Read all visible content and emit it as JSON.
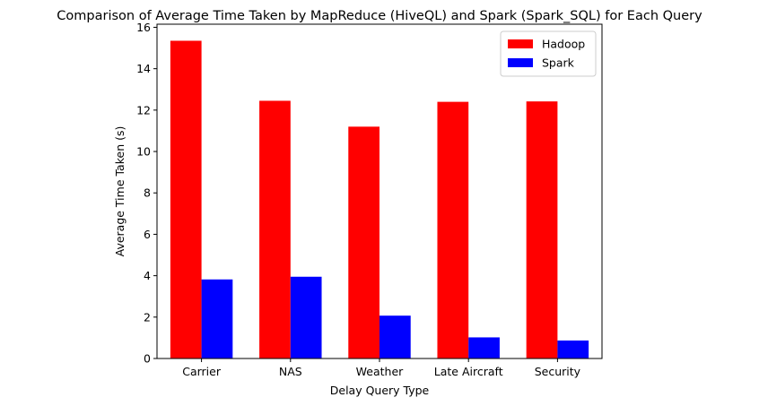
{
  "chart_data": {
    "type": "bar",
    "title": "Comparison of Average Time Taken by MapReduce (HiveQL) and Spark (Spark_SQL) for Each Query",
    "xlabel": "Delay Query Type",
    "ylabel": "Average Time Taken (s)",
    "categories": [
      "Carrier",
      "NAS",
      "Weather",
      "Late Aircraft",
      "Security"
    ],
    "series": [
      {
        "name": "Hadoop",
        "color": "#ff0000",
        "values": [
          15.35,
          12.45,
          11.2,
          12.4,
          12.42
        ]
      },
      {
        "name": "Spark",
        "color": "#0000ff",
        "values": [
          3.82,
          3.95,
          2.07,
          1.02,
          0.87
        ]
      }
    ],
    "ylim": [
      0,
      16.15
    ],
    "yticks": [
      0,
      2,
      4,
      6,
      8,
      10,
      12,
      14,
      16
    ],
    "grid": false,
    "legend_position": "top-right"
  }
}
